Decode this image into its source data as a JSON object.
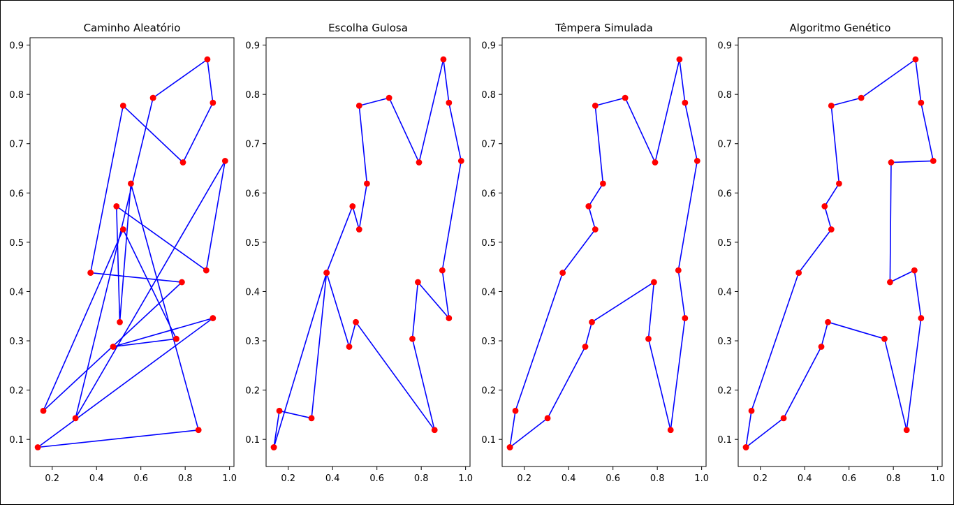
{
  "chart_data": [
    {
      "type": "line",
      "title": "Caminho Aleatório",
      "xlabel": "",
      "ylabel": "",
      "xlim": [
        0.1,
        1.02
      ],
      "ylim": [
        0.045,
        0.915
      ],
      "xticks": [
        "0.2",
        "0.4",
        "0.6",
        "0.8",
        "1.0"
      ],
      "yticks": [
        "0.1",
        "0.2",
        "0.3",
        "0.4",
        "0.5",
        "0.6",
        "0.7",
        "0.8",
        "0.9"
      ],
      "line_color": "#0000ff",
      "marker_color": "#ff0000",
      "x": [
        0.655,
        0.9,
        0.925,
        0.79,
        0.52,
        0.373,
        0.785,
        0.16,
        0.52,
        0.76,
        0.475,
        0.925,
        0.135,
        0.86,
        0.555,
        0.505,
        0.49,
        0.895,
        0.98,
        0.305,
        0.655
      ],
      "y": [
        0.793,
        0.871,
        0.783,
        0.662,
        0.777,
        0.438,
        0.419,
        0.158,
        0.526,
        0.304,
        0.288,
        0.346,
        0.084,
        0.119,
        0.619,
        0.338,
        0.573,
        0.443,
        0.665,
        0.143,
        0.793
      ]
    },
    {
      "type": "line",
      "title": "Escolha Gulosa",
      "xlabel": "",
      "ylabel": "",
      "xlim": [
        0.1,
        1.02
      ],
      "ylim": [
        0.045,
        0.915
      ],
      "xticks": [
        "0.2",
        "0.4",
        "0.6",
        "0.8",
        "1.0"
      ],
      "yticks": [
        "0.1",
        "0.2",
        "0.3",
        "0.4",
        "0.5",
        "0.6",
        "0.7",
        "0.8",
        "0.9"
      ],
      "line_color": "#0000ff",
      "marker_color": "#ff0000",
      "x": [
        0.135,
        0.16,
        0.305,
        0.373,
        0.475,
        0.505,
        0.86,
        0.76,
        0.785,
        0.925,
        0.895,
        0.98,
        0.925,
        0.9,
        0.79,
        0.655,
        0.52,
        0.555,
        0.52,
        0.49,
        0.373,
        0.135
      ],
      "y": [
        0.084,
        0.158,
        0.143,
        0.438,
        0.288,
        0.338,
        0.119,
        0.304,
        0.419,
        0.346,
        0.443,
        0.665,
        0.783,
        0.871,
        0.662,
        0.793,
        0.777,
        0.619,
        0.526,
        0.573,
        0.438,
        0.084
      ]
    },
    {
      "type": "line",
      "title": "Têmpera Simulada",
      "xlabel": "",
      "ylabel": "",
      "xlim": [
        0.1,
        1.02
      ],
      "ylim": [
        0.045,
        0.915
      ],
      "xticks": [
        "0.2",
        "0.4",
        "0.6",
        "0.8",
        "1.0"
      ],
      "yticks": [
        "0.1",
        "0.2",
        "0.3",
        "0.4",
        "0.5",
        "0.6",
        "0.7",
        "0.8",
        "0.9"
      ],
      "line_color": "#0000ff",
      "marker_color": "#ff0000",
      "x": [
        0.135,
        0.16,
        0.373,
        0.52,
        0.49,
        0.555,
        0.52,
        0.655,
        0.79,
        0.9,
        0.925,
        0.98,
        0.895,
        0.925,
        0.86,
        0.76,
        0.785,
        0.505,
        0.475,
        0.305,
        0.135
      ],
      "y": [
        0.084,
        0.158,
        0.438,
        0.526,
        0.573,
        0.619,
        0.777,
        0.793,
        0.662,
        0.871,
        0.783,
        0.665,
        0.443,
        0.346,
        0.119,
        0.304,
        0.419,
        0.338,
        0.288,
        0.143,
        0.084
      ]
    },
    {
      "type": "line",
      "title": "Algoritmo Genético",
      "xlabel": "",
      "ylabel": "",
      "xlim": [
        0.1,
        1.02
      ],
      "ylim": [
        0.045,
        0.915
      ],
      "xticks": [
        "0.2",
        "0.4",
        "0.6",
        "0.8",
        "1.0"
      ],
      "yticks": [
        "0.1",
        "0.2",
        "0.3",
        "0.4",
        "0.5",
        "0.6",
        "0.7",
        "0.8",
        "0.9"
      ],
      "line_color": "#0000ff",
      "marker_color": "#ff0000",
      "x": [
        0.135,
        0.16,
        0.373,
        0.52,
        0.49,
        0.555,
        0.52,
        0.655,
        0.9,
        0.925,
        0.98,
        0.79,
        0.785,
        0.895,
        0.925,
        0.86,
        0.76,
        0.505,
        0.475,
        0.305,
        0.135
      ],
      "y": [
        0.084,
        0.158,
        0.438,
        0.526,
        0.573,
        0.619,
        0.777,
        0.793,
        0.871,
        0.783,
        0.665,
        0.662,
        0.419,
        0.443,
        0.346,
        0.119,
        0.304,
        0.338,
        0.288,
        0.143,
        0.084
      ]
    }
  ]
}
